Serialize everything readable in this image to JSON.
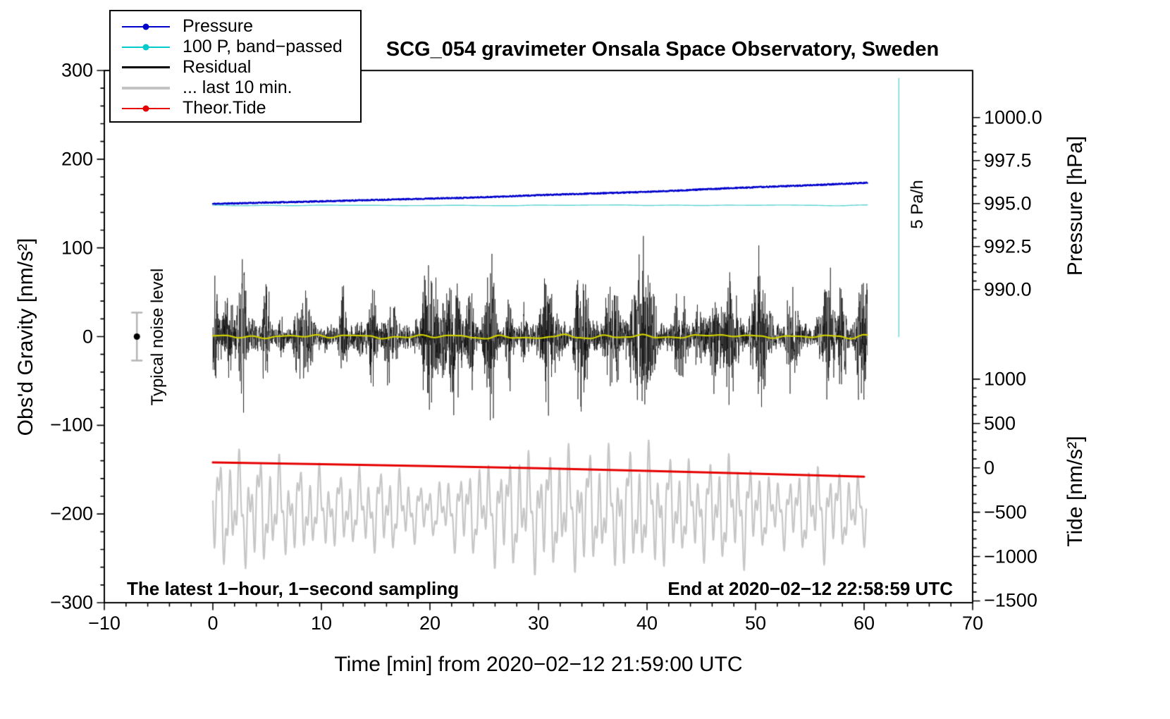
{
  "chart_data": {
    "type": "line",
    "title": "SCG_054 gravimeter Onsala Space Observatory, Sweden",
    "xlabel": "Time [min] from 2020−02−12 21:59:00 UTC",
    "ylabel_left": "Obs'd Gravity [nm/s²]",
    "ylabel_right_pressure": "Pressure [hPa]",
    "ylabel_right_tide": "Tide [nm/s²]",
    "xlim": [
      -10,
      70
    ],
    "ylim_gravity": [
      -300,
      300
    ],
    "grid": false,
    "x_ticks": {
      "values": [
        -10,
        0,
        10,
        20,
        30,
        40,
        50,
        60,
        70
      ],
      "labels": [
        "−10",
        "0",
        "10",
        "20",
        "30",
        "40",
        "50",
        "60",
        "70"
      ],
      "minor_step": 2
    },
    "y_ticks_gravity": {
      "values": [
        -300,
        -200,
        -100,
        0,
        100,
        200,
        300
      ],
      "labels": [
        "−300",
        "−200",
        "−100",
        "0",
        "100",
        "200",
        "300"
      ],
      "minor_step": 20
    },
    "pressure_axis": {
      "anchor_value": 995.0,
      "anchor_gravity": 150,
      "gravity_per_unit": 19.4,
      "ticks": [
        1000.0,
        997.5,
        995.0,
        992.5,
        990.0
      ],
      "labels": [
        "1000.0",
        "997.5",
        "995.0",
        "992.5",
        "990.0"
      ],
      "minor_step": 0.5,
      "minor_range": [
        990.0,
        1000.0
      ]
    },
    "tide_axis": {
      "anchor_value": 0,
      "anchor_gravity": -148,
      "gravity_per_unit": 0.1,
      "ticks": [
        1000,
        500,
        0,
        -500,
        -1000,
        -1500
      ],
      "labels": [
        "1000",
        "500",
        "0",
        "−500",
        "−1000",
        "−1500"
      ],
      "minor_step": 100,
      "minor_range": [
        -1500,
        1000
      ]
    },
    "legend": [
      {
        "label": "Pressure",
        "color": "#0000cd",
        "marker": "dot-line"
      },
      {
        "label": "100 P, band−passed",
        "color": "#00cccc",
        "marker": "dot-line"
      },
      {
        "label": "Residual",
        "color": "#000000",
        "marker": "line"
      },
      {
        "label": "... last 10 min.",
        "color": "#c3c3c3",
        "marker": "line-thick"
      },
      {
        "label": "Theor.Tide",
        "color": "#e60000",
        "marker": "dot-line"
      }
    ],
    "series": {
      "pressure": {
        "color": "#0000cd",
        "x_range": [
          0,
          60.3
        ],
        "hpa_start": 995.0,
        "hpa_end": 996.2,
        "jitter_hpa": 0.06,
        "seed": 11
      },
      "pressure_bandpassed": {
        "color": "#5fd3d3",
        "x_range": [
          0,
          60.3
        ],
        "gravity_level": 148,
        "wiggle": 1.0,
        "seed": 3
      },
      "residual": {
        "color": "#000000",
        "x_range": [
          0,
          60.3
        ],
        "mean_gravity": 0,
        "amp_min": 12,
        "amp_max": 100,
        "seed": 7
      },
      "residual_smooth": {
        "color": "#d0d000",
        "x_range": [
          0,
          60.3
        ],
        "gravity_level": 0,
        "wiggle": 5,
        "seed": 5
      },
      "residual_last10": {
        "color": "#c6c6c6",
        "x_range": [
          0,
          60.2
        ],
        "center_gravity": -196,
        "amp_min": 22,
        "amp_max": 80,
        "seed": 13
      },
      "theor_tide": {
        "color": "#e60000",
        "anchors_x": [
          0,
          10,
          20,
          30,
          40,
          50,
          60
        ],
        "anchors_tide": [
          62,
          42,
          20,
          -5,
          -34,
          -66,
          -100
        ]
      },
      "rate_bar": {
        "color": "#7fd4d4",
        "x": 63.2,
        "gravity_range": [
          0,
          291
        ]
      }
    },
    "annotations": {
      "noise_label": "Typical noise level",
      "noise_marker": {
        "x": -7,
        "gravity": 0,
        "error": 27
      },
      "rate_label": "5 Pa/h",
      "sampling_note": "The latest 1−hour, 1−second sampling",
      "end_note": "End at 2020−02−12 22:58:59 UTC"
    }
  }
}
